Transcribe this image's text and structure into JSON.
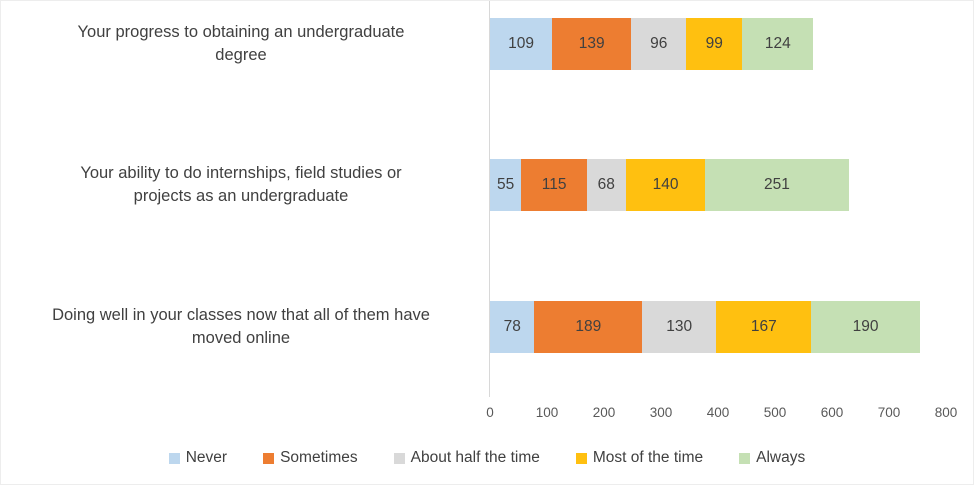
{
  "chart_data": {
    "type": "bar",
    "orientation": "horizontal",
    "stacked": true,
    "title": "",
    "xlabel": "",
    "ylabel": "",
    "categories": [
      "Your progress to obtaining an undergraduate degree",
      "Your ability to do internships, field studies or projects as an undergraduate",
      "Doing well in your classes now that all of them have moved online"
    ],
    "category_label_lines": [
      [
        "Your progress to obtaining an undergraduate",
        "degree"
      ],
      [
        "Your ability to do internships, field studies or",
        "projects as an undergraduate"
      ],
      [
        "Doing well in your classes now that all of them have",
        "moved online"
      ]
    ],
    "series": [
      {
        "name": "Never",
        "color": "#BDD7EE",
        "values": [
          109,
          55,
          78
        ]
      },
      {
        "name": "Sometimes",
        "color": "#ED7D31",
        "values": [
          139,
          115,
          189
        ]
      },
      {
        "name": "About half the time",
        "color": "#D9D9D9",
        "values": [
          96,
          68,
          130
        ]
      },
      {
        "name": "Most of the time",
        "color": "#FFC010",
        "values": [
          99,
          140,
          167
        ]
      },
      {
        "name": "Always",
        "color": "#C5E0B4",
        "values": [
          124,
          251,
          190
        ]
      }
    ],
    "data_labels_shown": true,
    "x_axis": {
      "min": 0,
      "max": 800,
      "tick_interval": 100,
      "ticks": [
        0,
        100,
        200,
        300,
        400,
        500,
        600,
        700,
        800
      ]
    },
    "grid": false,
    "legend_position": "bottom",
    "colors": {
      "axis_line": "#d8d8d8",
      "tick_label_text": "#595959",
      "category_label_text": "#404040",
      "data_label_text": "#404040",
      "legend_text": "#404040",
      "background": "#ffffff"
    }
  }
}
